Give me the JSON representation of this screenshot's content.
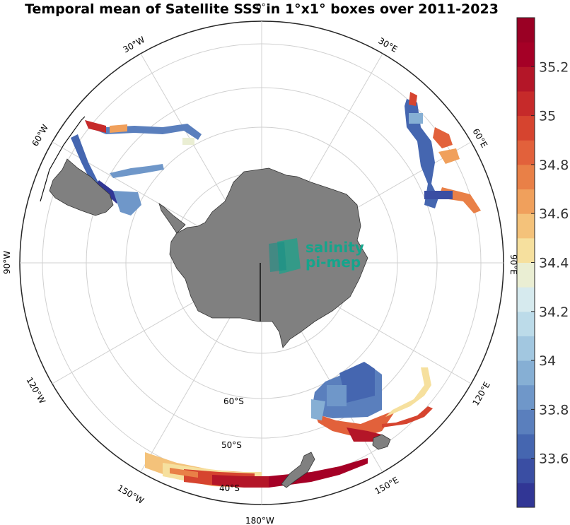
{
  "title": "Temporal mean of Satellite SSS in 1°x1° boxes over 2011-2023",
  "map": {
    "projection": "south-polar-stereographic",
    "grid": true,
    "longitude_labels": [
      "0°",
      "30°E",
      "60°E",
      "90°E",
      "120°E",
      "150°E",
      "180°W",
      "150°W",
      "120°W",
      "90°W",
      "60°W",
      "30°W"
    ],
    "latitude_labels": [
      "60°S",
      "50°S",
      "40°S"
    ],
    "land_color": "#808080",
    "logo": {
      "line1": "salinity",
      "line2": "pi-mep",
      "color": "#14a58c"
    }
  },
  "colorbar": {
    "ticks": [
      "35.2",
      "35",
      "34.8",
      "34.6",
      "34.4",
      "34.2",
      "34",
      "33.8",
      "33.6"
    ],
    "range": [
      33.4,
      35.4
    ],
    "colors": [
      "#313695",
      "#3a4ea3",
      "#4566b0",
      "#5a7fbd",
      "#6f97c9",
      "#86afd4",
      "#a2c7e0",
      "#bcdbe9",
      "#d6eaee",
      "#eaeed3",
      "#f6e09e",
      "#f4c27a",
      "#f0a05c",
      "#e98047",
      "#e2613b",
      "#d6442f",
      "#c62a2a",
      "#b41628",
      "#a50026",
      "#9a0024"
    ],
    "colormap": "RdYlBu_r"
  }
}
